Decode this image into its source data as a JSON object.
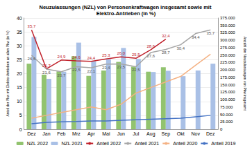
{
  "chart_data": {
    "type": "bar",
    "title": "Neuzulassungen (NZL) von Personenkraftwagen insgesamt sowie mit Elektro-Antrieben (in %)",
    "y_label": "Anteil der Pkw mit Elektro-Antrieben an allen Pkw (in %)",
    "y2_label": "Anzahl der Neuzulassungen von Pkw insgesamt",
    "categories": [
      "Dez",
      "Jan",
      "Feb",
      "Mrz",
      "Apr",
      "Mai",
      "Jun",
      "Jul",
      "Aug",
      "Sep",
      "Okt",
      "Nov",
      "Dez"
    ],
    "ylim": [
      0,
      40
    ],
    "yticks": [
      0,
      5,
      10,
      15,
      20,
      25,
      30,
      35,
      40
    ],
    "y2lim": [
      0,
      375000
    ],
    "y2ticks": [
      0,
      {
        "value": 25000,
        "label": "25.000"
      },
      {
        "value": 50000,
        "label": "50.000"
      },
      {
        "value": 75000,
        "label": "75.000"
      },
      {
        "value": 100000,
        "label": "100.000"
      },
      {
        "value": 125000,
        "label": "125.000"
      },
      {
        "value": 150000,
        "label": "150.000"
      },
      {
        "value": 175000,
        "label": "175.000"
      },
      {
        "value": 200000,
        "label": "200.000"
      },
      {
        "value": 225000,
        "label": "225.000"
      },
      {
        "value": 250000,
        "label": "250.000"
      },
      {
        "value": 275000,
        "label": "275.000"
      },
      {
        "value": 300000,
        "label": "300.000"
      },
      {
        "value": 325000,
        "label": "325.000"
      },
      {
        "value": 350000,
        "label": "350.000"
      },
      {
        "value": 375000,
        "label": "375.000"
      }
    ],
    "grid": true,
    "legend": "bottom",
    "series": [
      {
        "name": "NZL 2022",
        "type": "bar",
        "axis": "y2",
        "color": "#92c36f",
        "values": [
          221000,
          184000,
          195000,
          246000,
          180000,
          198000,
          227000,
          211000,
          194000,
          209000,
          null,
          null,
          null
        ]
      },
      {
        "name": "NZL 2021",
        "type": "bar",
        "axis": "y2",
        "color": "#a9c0e6",
        "values": [
          311000,
          170000,
          194000,
          292000,
          230000,
          236000,
          274000,
          237000,
          193000,
          197000,
          179000,
          198000,
          221000
        ]
      },
      {
        "name": "Anteil 2022",
        "type": "line",
        "color": "#c0202a",
        "data_labels": true,
        "values": [
          35.7,
          21.7,
          24.9,
          24.6,
          24.4,
          25.3,
          26.0,
          25.5,
          28.6,
          32.4,
          null,
          null,
          null
        ],
        "value_labels": [
          "35,7",
          "21,7",
          "24,9",
          "24,6",
          "24,4",
          "25,3",
          "26,0",
          "25,5",
          "28,6",
          "32,4",
          null,
          null,
          null
        ]
      },
      {
        "name": "Anteil 2021",
        "type": "line",
        "color": "#a6a6a6",
        "data_labels": true,
        "values": [
          26.6,
          21.6,
          20.7,
          22.5,
          22.1,
          23.4,
          23.5,
          22.5,
          27.6,
          28.7,
          30.4,
          34.4,
          35.7
        ],
        "value_labels": [
          "26,6",
          "21,6",
          "20,7",
          "22,5",
          "22,1",
          "23,4",
          "23,5",
          "22,5",
          "27,6",
          "28,7",
          "30,4",
          "34,4",
          "35,7"
        ]
      },
      {
        "name": "Anteil 2020",
        "type": "line",
        "color": "#f4b183",
        "values": [
          4,
          5,
          6,
          7,
          8,
          7,
          9,
          13,
          15,
          17,
          19,
          23,
          27
        ]
      },
      {
        "name": "Anteil 2019",
        "type": "line",
        "color": "#4472c4",
        "values": [
          2,
          2.5,
          2.7,
          2.8,
          3,
          3,
          3.2,
          3.4,
          3.6,
          3.8,
          4,
          4.5,
          5
        ]
      }
    ]
  }
}
